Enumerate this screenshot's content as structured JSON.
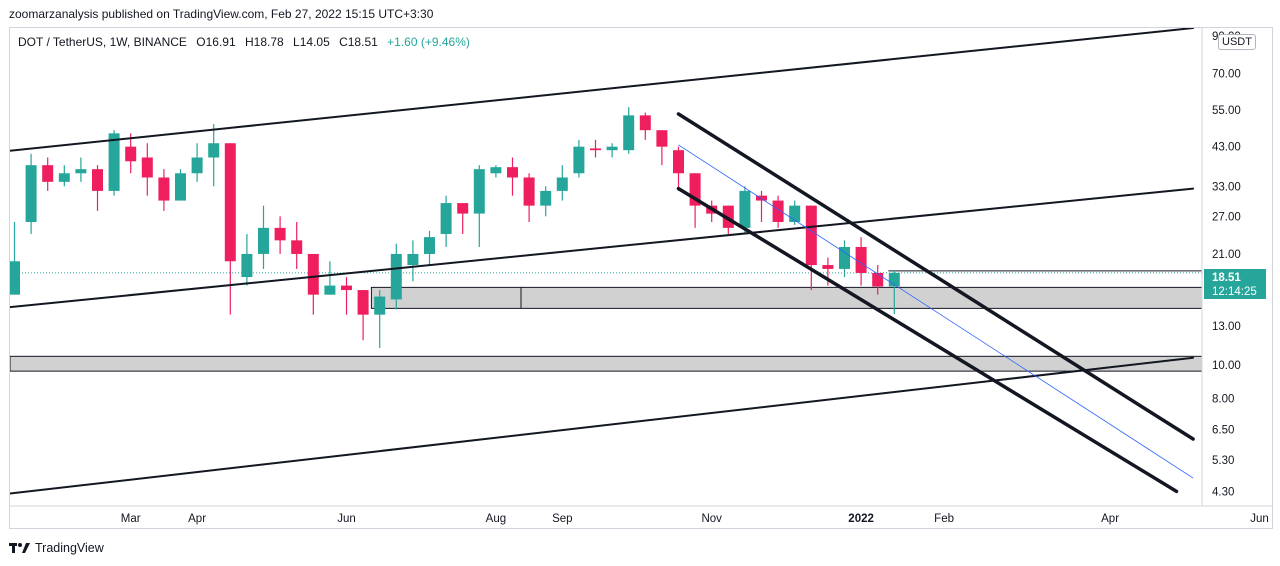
{
  "publisher_line": "zoomarzanalysis published on TradingView.com, Feb 27, 2022 15:15 UTC+3:30",
  "legend": {
    "symbol": "DOT / TetherUS, 1W, BINANCE",
    "open": "O16.91",
    "high": "H18.78",
    "low": "L14.05",
    "close": "C18.51",
    "change": "+1.60 (+9.46%)"
  },
  "currency": "USDT",
  "last_price": "18.51",
  "countdown": "12:14:25",
  "brand": "TradingView",
  "colors": {
    "up": "#26a69a",
    "down": "#ef1f5f",
    "zone": "#d1d1d1",
    "fib": "#2962ff",
    "axis_text": "#131722"
  },
  "chart_data": {
    "type": "candlestick",
    "scale": "log",
    "ylim": [
      3.9,
      95
    ],
    "y_ticks": [
      "90.00",
      "70.00",
      "55.00",
      "43.00",
      "33.00",
      "27.00",
      "21.00",
      "13.00",
      "10.00",
      "8.00",
      "6.50",
      "5.30",
      "4.30"
    ],
    "x_ticks": [
      "Mar",
      "Apr",
      "Jun",
      "Aug",
      "Sep",
      "Nov",
      "2022",
      "Feb",
      "Apr",
      "Jun"
    ],
    "x_tick_weeks": [
      7,
      11,
      20,
      29,
      33,
      42,
      51,
      56,
      66,
      75
    ],
    "candles": [
      [
        16,
        20,
        26,
        19.5
      ],
      [
        26,
        38,
        41,
        24
      ],
      [
        38,
        34,
        40,
        32
      ],
      [
        34,
        36,
        38,
        33
      ],
      [
        36,
        37,
        40,
        34
      ],
      [
        37,
        32,
        38,
        28
      ],
      [
        32,
        47,
        48,
        31
      ],
      [
        43,
        39,
        47,
        36
      ],
      [
        40,
        35,
        44,
        31
      ],
      [
        35,
        30,
        37,
        28
      ],
      [
        30,
        36,
        37,
        30
      ],
      [
        36,
        40,
        44,
        34
      ],
      [
        40,
        44,
        50,
        33
      ],
      [
        44,
        20,
        44,
        14
      ],
      [
        18,
        21,
        24,
        17
      ],
      [
        21,
        25,
        29,
        19
      ],
      [
        25,
        23,
        27,
        21
      ],
      [
        23,
        21,
        26,
        19
      ],
      [
        21,
        16,
        21,
        14
      ],
      [
        16,
        17,
        20,
        16
      ],
      [
        17,
        16.5,
        18,
        14
      ],
      [
        16.5,
        14,
        16.5,
        11.8
      ],
      [
        14,
        15.8,
        16.5,
        11.2
      ],
      [
        15.5,
        21,
        22.5,
        14.5
      ],
      [
        19.5,
        21,
        23,
        17.5
      ],
      [
        21,
        23.5,
        24.5,
        19.5
      ],
      [
        24,
        29.5,
        31,
        22
      ],
      [
        29.5,
        27.5,
        29.5,
        24
      ],
      [
        27.5,
        37,
        38,
        22
      ],
      [
        36,
        37.5,
        38,
        35
      ],
      [
        37.5,
        35,
        40,
        31
      ],
      [
        35,
        29,
        36,
        26
      ],
      [
        29,
        32,
        33,
        27
      ],
      [
        32,
        35,
        38,
        30
      ],
      [
        36,
        43,
        45,
        35
      ],
      [
        42.5,
        42,
        45,
        40
      ],
      [
        42,
        43,
        44,
        40
      ],
      [
        42,
        53,
        56,
        41
      ],
      [
        53,
        48,
        54,
        45
      ],
      [
        48,
        43,
        48,
        38
      ],
      [
        42,
        36,
        43,
        32
      ],
      [
        36,
        29,
        36,
        25
      ],
      [
        29,
        27.5,
        30,
        26
      ],
      [
        29,
        25,
        29,
        24
      ],
      [
        25,
        32,
        33,
        24
      ],
      [
        31,
        30,
        32,
        26
      ],
      [
        30,
        26,
        31,
        25
      ],
      [
        26,
        29,
        30,
        25.5
      ],
      [
        29,
        19.5,
        29,
        16.5
      ],
      [
        19.5,
        19,
        20.5,
        17
      ],
      [
        19,
        22,
        23,
        18
      ],
      [
        22,
        18.5,
        23.5,
        17
      ],
      [
        18.5,
        16.9,
        19.5,
        16
      ],
      [
        16.91,
        18.51,
        18.78,
        14.05
      ]
    ],
    "trend_lines": [
      {
        "from": [
          -1,
          41.5
        ],
        "to": [
          71,
          95
        ]
      },
      {
        "from": [
          -1,
          14.6
        ],
        "to": [
          71,
          32.5
        ]
      },
      {
        "from": [
          -1,
          4.2
        ],
        "to": [
          71,
          10.5
        ]
      },
      {
        "from": [
          40,
          53.5
        ],
        "to": [
          71,
          6.1
        ]
      },
      {
        "from": [
          40,
          32.5
        ],
        "to": [
          70,
          4.3
        ]
      }
    ],
    "fib_line": {
      "from": [
        40,
        43.5
      ],
      "to": [
        71,
        4.7
      ]
    },
    "zones": [
      {
        "from_week": 21.5,
        "low": 14.6,
        "high": 16.8
      },
      {
        "from_week": -1,
        "low": 9.6,
        "high": 10.6
      }
    ],
    "last_price_value": 18.51
  }
}
